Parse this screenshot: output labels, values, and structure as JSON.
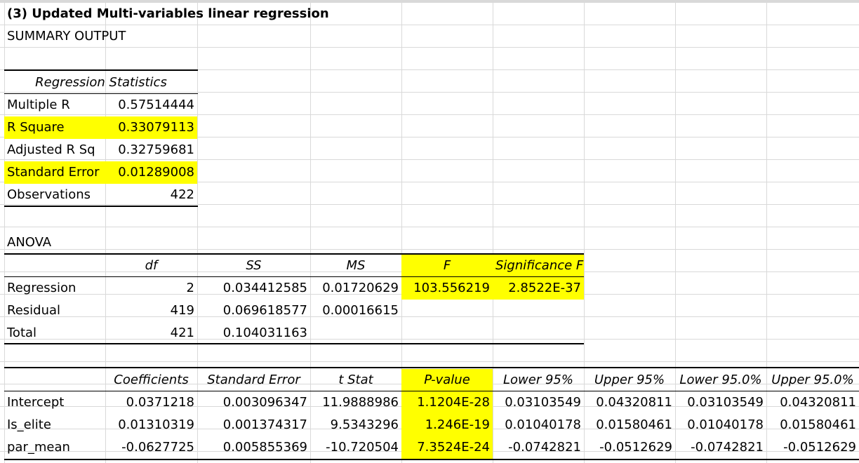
{
  "title": "(3) Updated Multi-variables linear regression",
  "summary_output": "SUMMARY OUTPUT",
  "regression_statistics": {
    "header": "Regression Statistics",
    "rows": [
      {
        "label": "Multiple R",
        "value": "0.57514444",
        "highlight": false
      },
      {
        "label": "R Square",
        "value": "0.33079113",
        "highlight": true
      },
      {
        "label": "Adjusted R Sq",
        "value": "0.32759681",
        "highlight": false
      },
      {
        "label": "Standard Error",
        "value": "0.01289008",
        "highlight": true
      },
      {
        "label": "Observations",
        "value": "422",
        "highlight": false
      }
    ]
  },
  "anova": {
    "label": "ANOVA",
    "headers": [
      "df",
      "SS",
      "MS",
      "F",
      "Significance F"
    ],
    "rows": [
      {
        "label": "Regression",
        "df": "2",
        "ss": "0.034412585",
        "ms": "0.01720629",
        "f": "103.556219",
        "sig_f": "2.8522E-37"
      },
      {
        "label": "Residual",
        "df": "419",
        "ss": "0.069618577",
        "ms": "0.00016615",
        "f": "",
        "sig_f": ""
      },
      {
        "label": "Total",
        "df": "421",
        "ss": "0.104031163",
        "ms": "",
        "f": "",
        "sig_f": ""
      }
    ]
  },
  "coefficients": {
    "headers": [
      "Coefficients",
      "Standard Error",
      "t Stat",
      "P-value",
      "Lower 95%",
      "Upper 95%",
      "Lower 95.0%",
      "Upper 95.0%"
    ],
    "rows": [
      {
        "label": "Intercept",
        "values": [
          "0.0371218",
          "0.003096347",
          "11.9888986",
          "1.1204E-28",
          "0.03103549",
          "0.04320811",
          "0.03103549",
          "0.04320811"
        ]
      },
      {
        "label": "Is_elite",
        "values": [
          "0.01310319",
          "0.001374317",
          "9.5343296",
          "1.246E-19",
          "0.01040178",
          "0.01580461",
          "0.01040178",
          "0.01580461"
        ]
      },
      {
        "label": "par_mean",
        "values": [
          "-0.0627725",
          "0.005855369",
          "-10.720504",
          "7.3524E-24",
          "-0.0742821",
          "-0.0512629",
          "-0.0742821",
          "-0.0512629"
        ]
      }
    ]
  },
  "colors": {
    "highlight": "#ffff00",
    "gridline": "#d9d9d9",
    "border": "#000000"
  }
}
